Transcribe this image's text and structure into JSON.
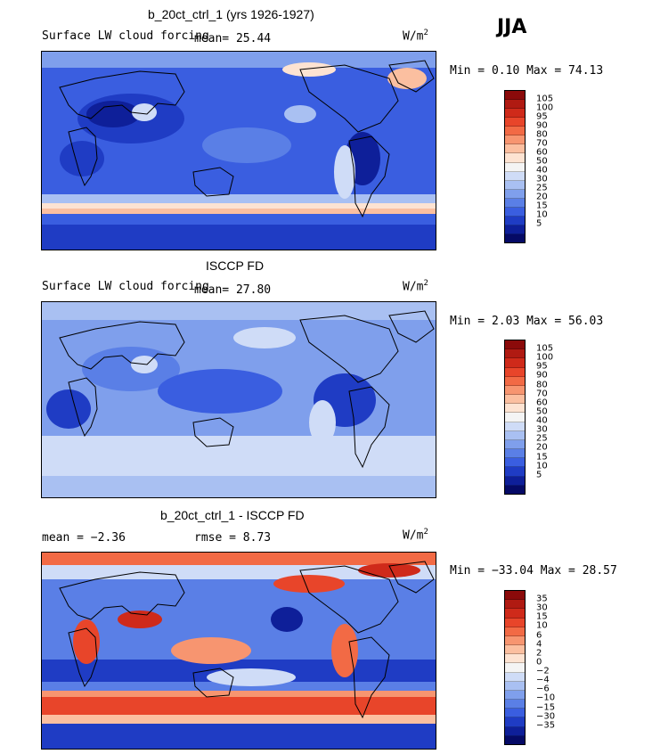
{
  "season": "JJA",
  "panels": [
    {
      "title": "b_20ct_ctrl_1 (yrs 1926-1927)",
      "left_text": "Surface LW cloud forcing",
      "mean_text": "mean=   25.44",
      "units": "W/m",
      "units_sup": "2",
      "minmax": "Min =   0.10 Max =  74.13",
      "colorbar_labels": [
        "105",
        "100",
        "95",
        "90",
        "80",
        "70",
        "60",
        "50",
        "40",
        "30",
        "25",
        "20",
        "15",
        "10",
        "5"
      ],
      "colors": [
        "#8b0a0a",
        "#b01a12",
        "#cf2a1a",
        "#e8452a",
        "#f26a45",
        "#f79570",
        "#fbbfa0",
        "#fde3d2",
        "#f4f4f4",
        "#cfdcf7",
        "#a9c0f2",
        "#7f9fec",
        "#5a7fe6",
        "#3a5ee0",
        "#1f3cc4",
        "#0e1f99",
        "#050a66"
      ]
    },
    {
      "title": "ISCCP FD",
      "left_text": "Surface LW cloud forcing",
      "mean_text": "mean=   27.80",
      "units": "W/m",
      "units_sup": "2",
      "minmax": "Min =   2.03 Max =  56.03",
      "colorbar_labels": [
        "105",
        "100",
        "95",
        "90",
        "80",
        "70",
        "60",
        "50",
        "40",
        "30",
        "25",
        "20",
        "15",
        "10",
        "5"
      ],
      "colors": [
        "#8b0a0a",
        "#b01a12",
        "#cf2a1a",
        "#e8452a",
        "#f26a45",
        "#f79570",
        "#fbbfa0",
        "#fde3d2",
        "#f4f4f4",
        "#cfdcf7",
        "#a9c0f2",
        "#7f9fec",
        "#5a7fe6",
        "#3a5ee0",
        "#1f3cc4",
        "#0e1f99",
        "#050a66"
      ]
    },
    {
      "title": "b_20ct_ctrl_1 - ISCCP FD",
      "left_text": "mean =  −2.36",
      "mean_text": "rmse =   8.73",
      "units": "W/m",
      "units_sup": "2",
      "minmax": "Min = −33.04 Max =  28.57",
      "colorbar_labels": [
        "35",
        "30",
        "15",
        "10",
        "6",
        "4",
        "2",
        "0",
        "−2",
        "−4",
        "−6",
        "−10",
        "−15",
        "−30",
        "−35"
      ],
      "colors": [
        "#8b0a0a",
        "#b01a12",
        "#cf2a1a",
        "#e8452a",
        "#f26a45",
        "#f79570",
        "#fbbfa0",
        "#fde3d2",
        "#f4f4f4",
        "#cfdcf7",
        "#a9c0f2",
        "#7f9fec",
        "#5a7fe6",
        "#3a5ee0",
        "#1f3cc4",
        "#0e1f99",
        "#050a66"
      ]
    }
  ]
}
